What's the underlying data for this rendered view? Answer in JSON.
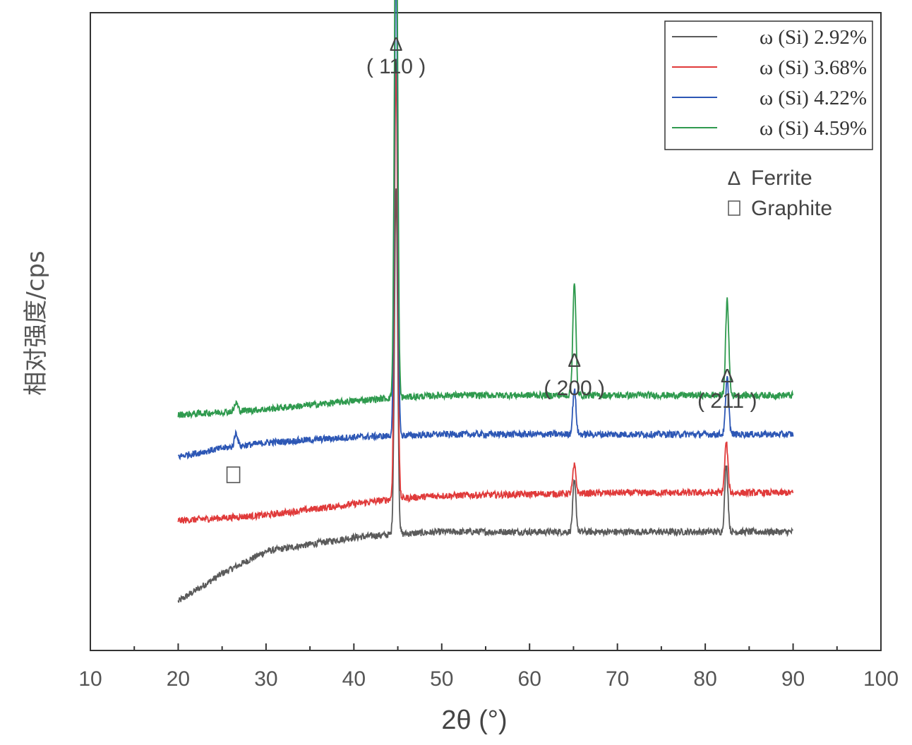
{
  "chart_data": {
    "type": "line",
    "xlabel": "2θ (°)",
    "ylabel": "相对强度/cps",
    "xlim": [
      10,
      100
    ],
    "x_ticks": [
      10,
      20,
      30,
      40,
      50,
      60,
      70,
      80,
      90,
      100
    ],
    "x_tick_labels": [
      "10",
      "20",
      "30",
      "40",
      "50",
      "60",
      "70",
      "80",
      "90",
      "100"
    ],
    "x_range_data": [
      20,
      90
    ],
    "grid": false,
    "legend_position": "top-right",
    "series": [
      {
        "name": "ω (Si) 2.92%",
        "color": "#5a5a5a",
        "baseline_points": [
          [
            20,
            0.06
          ],
          [
            25,
            0.11
          ],
          [
            30,
            0.15
          ],
          [
            40,
            0.175
          ],
          [
            44,
            0.18
          ],
          [
            50,
            0.185
          ],
          [
            60,
            0.185
          ],
          [
            70,
            0.185
          ],
          [
            80,
            0.185
          ],
          [
            90,
            0.185
          ]
        ],
        "peaks": [
          [
            44.8,
            0.62
          ],
          [
            65.1,
            0.09
          ],
          [
            82.4,
            0.12
          ]
        ]
      },
      {
        "name": "ω (Si) 3.68%",
        "color": "#e03a3a",
        "baseline_points": [
          [
            20,
            0.205
          ],
          [
            30,
            0.215
          ],
          [
            40,
            0.235
          ],
          [
            45,
            0.245
          ],
          [
            50,
            0.25
          ],
          [
            70,
            0.255
          ],
          [
            90,
            0.255
          ]
        ],
        "peaks": [
          [
            44.8,
            0.78
          ],
          [
            65.1,
            0.05
          ],
          [
            82.4,
            0.09
          ]
        ]
      },
      {
        "name": "ω (Si) 4.22%",
        "color": "#2d57b5",
        "baseline_points": [
          [
            20,
            0.32
          ],
          [
            25,
            0.335
          ],
          [
            30,
            0.345
          ],
          [
            40,
            0.355
          ],
          [
            50,
            0.36
          ],
          [
            70,
            0.36
          ],
          [
            90,
            0.36
          ]
        ],
        "peaks": [
          [
            26.6,
            0.025
          ],
          [
            44.8,
            0.88
          ],
          [
            65.1,
            0.08
          ],
          [
            82.5,
            0.1
          ]
        ]
      },
      {
        "name": "ω (Si) 4.59%",
        "color": "#2f9a4e",
        "baseline_points": [
          [
            20,
            0.395
          ],
          [
            30,
            0.405
          ],
          [
            40,
            0.42
          ],
          [
            44,
            0.425
          ],
          [
            50,
            0.43
          ],
          [
            70,
            0.43
          ],
          [
            90,
            0.43
          ]
        ],
        "peaks": [
          [
            26.6,
            0.015
          ],
          [
            44.8,
            1.0
          ],
          [
            65.1,
            0.2
          ],
          [
            82.5,
            0.17
          ]
        ]
      }
    ],
    "annotations": [
      {
        "x": 44.8,
        "marker": "Δ",
        "label": "( 110 )",
        "phase": "Ferrite"
      },
      {
        "x": 65.1,
        "marker": "Δ",
        "label": "( 200 )",
        "phase": "Ferrite"
      },
      {
        "x": 82.5,
        "marker": "Δ",
        "label": "( 211 )",
        "phase": "Ferrite"
      },
      {
        "x": 26.6,
        "marker": "□",
        "label": "",
        "phase": "Graphite"
      }
    ],
    "phase_legend": [
      {
        "symbol": "Δ",
        "label": "Ferrite"
      },
      {
        "symbol": "□",
        "label": "Graphite"
      }
    ]
  }
}
